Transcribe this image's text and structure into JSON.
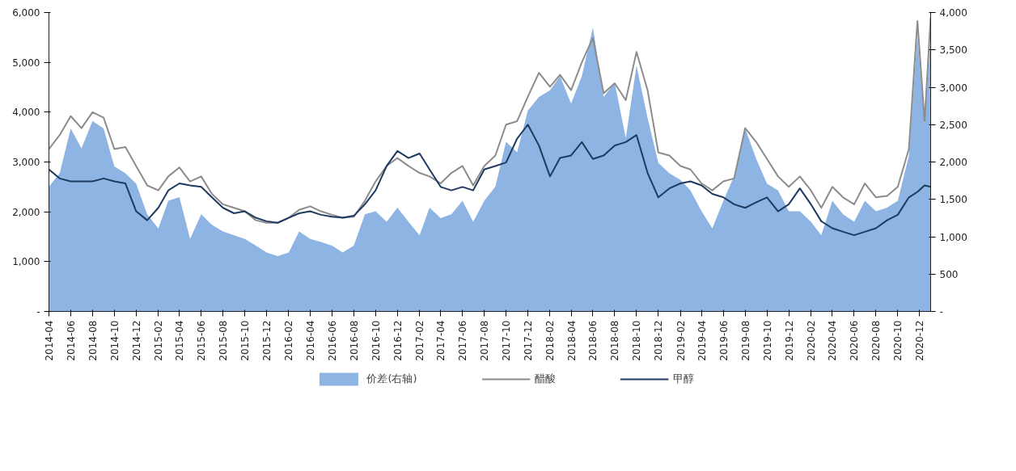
{
  "chart_data": {
    "type": "line",
    "x": [
      "2014-04",
      "2014-05",
      "2014-06",
      "2014-07",
      "2014-08",
      "2014-09",
      "2014-10",
      "2014-11",
      "2014-12",
      "2015-01",
      "2015-02",
      "2015-03",
      "2015-04",
      "2015-05",
      "2015-06",
      "2015-07",
      "2015-08",
      "2015-09",
      "2015-10",
      "2015-11",
      "2015-12",
      "2016-01",
      "2016-02",
      "2016-03",
      "2016-04",
      "2016-05",
      "2016-06",
      "2016-07",
      "2016-08",
      "2016-09",
      "2016-10",
      "2016-11",
      "2016-12",
      "2017-01",
      "2017-02",
      "2017-03",
      "2017-04",
      "2017-05",
      "2017-06",
      "2017-07",
      "2017-08",
      "2017-09",
      "2017-10",
      "2017-11",
      "2017-12",
      "2018-01",
      "2018-02",
      "2018-03",
      "2018-04",
      "2018-05",
      "2018-06",
      "2018-07",
      "2018-08",
      "2018-09",
      "2018-10",
      "2018-11",
      "2018-12",
      "2019-01",
      "2019-02",
      "2019-03",
      "2019-04",
      "2019-05",
      "2019-06",
      "2019-07",
      "2019-08",
      "2019-09",
      "2019-10",
      "2019-11",
      "2019-12",
      "2020-01",
      "2020-02",
      "2020-03",
      "2020-04",
      "2020-05",
      "2020-06",
      "2020-07",
      "2020-08",
      "2020-09",
      "2020-10",
      "2020-11",
      "2020-11-25",
      "2020-12-15",
      "2021-01"
    ],
    "series": [
      {
        "name": "价差(右轴)",
        "type": "area",
        "axis": "y2",
        "color": "#8db4e2",
        "values": [
          1670,
          1850,
          2450,
          2180,
          2550,
          2450,
          1940,
          1850,
          1710,
          1300,
          1110,
          1480,
          1530,
          970,
          1300,
          1160,
          1070,
          1020,
          970,
          880,
          790,
          740,
          790,
          1070,
          970,
          930,
          880,
          790,
          880,
          1300,
          1340,
          1200,
          1390,
          1200,
          1020,
          1390,
          1250,
          1300,
          1480,
          1200,
          1480,
          1670,
          2270,
          2130,
          2690,
          2870,
          2960,
          3150,
          2780,
          3150,
          3800,
          2870,
          3060,
          2320,
          3290,
          2590,
          1990,
          1850,
          1760,
          1620,
          1340,
          1110,
          1480,
          1810,
          2450,
          2040,
          1710,
          1620,
          1340,
          1340,
          1200,
          1020,
          1480,
          1300,
          1200,
          1480,
          1340,
          1390,
          1480,
          2080,
          3700,
          2500,
          3660
        ]
      },
      {
        "name": "醋酸",
        "color": "#8c8c8c",
        "values": [
          3260,
          3540,
          3920,
          3680,
          4000,
          3890,
          3260,
          3300,
          2920,
          2530,
          2430,
          2710,
          2890,
          2610,
          2710,
          2360,
          2150,
          2080,
          2010,
          1830,
          1780,
          1780,
          1880,
          2040,
          2110,
          2010,
          1940,
          1880,
          1900,
          2220,
          2610,
          2920,
          3080,
          2920,
          2780,
          2710,
          2570,
          2780,
          2920,
          2530,
          2920,
          3130,
          3750,
          3820,
          4310,
          4790,
          4510,
          4750,
          4440,
          5000,
          5490,
          4380,
          4580,
          4240,
          5210,
          4440,
          3190,
          3130,
          2920,
          2850,
          2570,
          2430,
          2610,
          2670,
          3680,
          3400,
          3060,
          2710,
          2500,
          2710,
          2430,
          2080,
          2500,
          2290,
          2150,
          2570,
          2290,
          2320,
          2500,
          3260,
          5830,
          3820,
          5900
        ]
      },
      {
        "name": "甲醇",
        "color": "#1f3a5f",
        "values": [
          2850,
          2670,
          2610,
          2610,
          2610,
          2670,
          2610,
          2570,
          2010,
          1830,
          2080,
          2430,
          2570,
          2530,
          2500,
          2290,
          2080,
          1970,
          2010,
          1880,
          1810,
          1780,
          1880,
          1970,
          2010,
          1940,
          1900,
          1880,
          1920,
          2150,
          2430,
          2920,
          3220,
          3080,
          3170,
          2850,
          2500,
          2430,
          2500,
          2430,
          2850,
          2920,
          2990,
          3470,
          3750,
          3330,
          2710,
          3080,
          3130,
          3400,
          3060,
          3130,
          3330,
          3400,
          3540,
          2780,
          2290,
          2470,
          2570,
          2610,
          2530,
          2360,
          2290,
          2150,
          2080,
          2190,
          2290,
          2010,
          2150,
          2470,
          2150,
          1810,
          1670,
          1600,
          1530,
          1600,
          1670,
          1830,
          1940,
          2290,
          2400,
          2530,
          2500
        ]
      }
    ],
    "xlim": [
      "2014-04",
      "2021-01"
    ],
    "xticks": [
      "2014-04",
      "2014-06",
      "2014-08",
      "2014-10",
      "2014-12",
      "2015-02",
      "2015-04",
      "2015-06",
      "2015-08",
      "2015-10",
      "2015-12",
      "2016-02",
      "2016-04",
      "2016-06",
      "2016-08",
      "2016-10",
      "2016-12",
      "2017-02",
      "2017-04",
      "2017-06",
      "2017-08",
      "2017-10",
      "2017-12",
      "2018-02",
      "2018-04",
      "2018-06",
      "2018-08",
      "2018-10",
      "2018-12",
      "2019-02",
      "2019-04",
      "2019-06",
      "2019-08",
      "2019-10",
      "2019-12",
      "2020-02",
      "2020-04",
      "2020-06",
      "2020-08",
      "2020-10",
      "2020-12"
    ],
    "ylim": [
      0,
      6000
    ],
    "yticks": [
      {
        "value": 0,
        "label": "-"
      },
      {
        "value": 1000,
        "label": "1,000"
      },
      {
        "value": 2000,
        "label": "2,000"
      },
      {
        "value": 3000,
        "label": "3,000"
      },
      {
        "value": 4000,
        "label": "4,000"
      },
      {
        "value": 5000,
        "label": "5,000"
      },
      {
        "value": 6000,
        "label": "6,000"
      }
    ],
    "y2lim": [
      0,
      4000
    ],
    "y2ticks": [
      {
        "value": 0,
        "label": "-"
      },
      {
        "value": 500,
        "label": "500"
      },
      {
        "value": 1000,
        "label": "1,000"
      },
      {
        "value": 1500,
        "label": "1,500"
      },
      {
        "value": 2000,
        "label": "2,000"
      },
      {
        "value": 2500,
        "label": "2,500"
      },
      {
        "value": 3000,
        "label": "3,000"
      },
      {
        "value": 3500,
        "label": "3,500"
      },
      {
        "value": 4000,
        "label": "4,000"
      }
    ],
    "grid": false,
    "legend": "bottom"
  }
}
